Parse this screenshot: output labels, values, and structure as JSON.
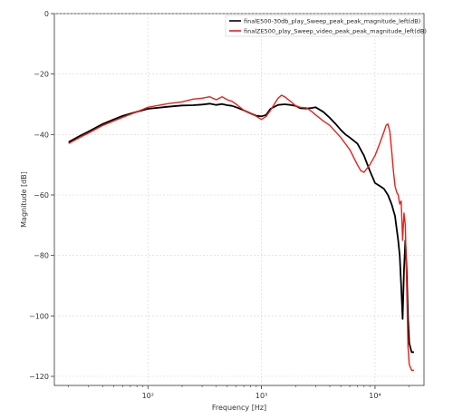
{
  "chart_data": {
    "type": "line",
    "title": "",
    "xlabel": "Frequency [Hz]",
    "ylabel": "Magnitude [dB]",
    "xscale": "log",
    "xlim": [
      15,
      27000
    ],
    "ylim": [
      -123,
      0
    ],
    "x_ticks": [
      {
        "value": 100,
        "label": "10²"
      },
      {
        "value": 1000,
        "label": "10³"
      },
      {
        "value": 10000,
        "label": "10⁴"
      }
    ],
    "y_ticks": [
      {
        "value": 0,
        "label": "0"
      },
      {
        "value": -20,
        "label": "−20"
      },
      {
        "value": -40,
        "label": "−40"
      },
      {
        "value": -60,
        "label": "−60"
      },
      {
        "value": -80,
        "label": "−80"
      },
      {
        "value": -100,
        "label": "−100"
      },
      {
        "value": -120,
        "label": "−120"
      }
    ],
    "grid": true,
    "legend_position": "top-right",
    "series": [
      {
        "name": "finalE500-30db_play_Sweep_peak_peak_magnitude_left(dB)",
        "color": "#000000",
        "x": [
          20,
          25,
          30,
          40,
          50,
          60,
          80,
          100,
          150,
          200,
          250,
          300,
          350,
          400,
          450,
          500,
          550,
          600,
          700,
          800,
          900,
          1000,
          1100,
          1200,
          1400,
          1600,
          1800,
          2000,
          2200,
          2500,
          2800,
          3000,
          3500,
          4000,
          4500,
          5000,
          5500,
          6000,
          7000,
          8000,
          9000,
          10000,
          11000,
          12000,
          13000,
          14000,
          15000,
          16000,
          16500,
          17000,
          17500,
          18000,
          18500,
          19000,
          19500,
          20000,
          21000,
          22000
        ],
        "y": [
          -42.5,
          -40.5,
          -39,
          -36.5,
          -35,
          -33.8,
          -32.5,
          -31.5,
          -30.8,
          -30.4,
          -30.3,
          -30.1,
          -29.8,
          -30.2,
          -29.9,
          -30.3,
          -30.5,
          -31,
          -32,
          -33,
          -33.8,
          -34,
          -33.5,
          -31.5,
          -30.2,
          -30,
          -30.2,
          -30.5,
          -31.3,
          -31.4,
          -31.2,
          -31,
          -32.5,
          -34.5,
          -36.5,
          -38.5,
          -40,
          -41,
          -43,
          -47,
          -52,
          -56,
          -57,
          -58,
          -60,
          -63,
          -67,
          -75,
          -80,
          -90,
          -101,
          -85,
          -75,
          -85,
          -100,
          -109,
          -112,
          -112
        ]
      },
      {
        "name": "finalZE500_play_Sweep_video_peak_peak_magnitude_left(dB)",
        "color": "#e8201a",
        "x": [
          20,
          25,
          30,
          40,
          50,
          60,
          80,
          100,
          150,
          200,
          250,
          300,
          350,
          400,
          450,
          500,
          550,
          600,
          700,
          800,
          900,
          1000,
          1100,
          1200,
          1400,
          1500,
          1600,
          1800,
          2000,
          2200,
          2500,
          2800,
          3000,
          3500,
          4000,
          5000,
          6000,
          7000,
          7500,
          8000,
          9000,
          10000,
          11000,
          12000,
          12500,
          13000,
          13500,
          14000,
          14500,
          15000,
          15500,
          16000,
          16500,
          17000,
          17500,
          18000,
          18500,
          19000,
          19500,
          20000,
          21000,
          22000
        ],
        "y": [
          -43,
          -41,
          -39.5,
          -37,
          -35.5,
          -34.3,
          -32.5,
          -31,
          -29.8,
          -29.2,
          -28.3,
          -28,
          -27.5,
          -28.5,
          -27.5,
          -28.5,
          -29,
          -30,
          -32,
          -33,
          -34,
          -35,
          -34,
          -32,
          -28,
          -27,
          -27.5,
          -29,
          -30.5,
          -31,
          -31.2,
          -32.5,
          -33.5,
          -35.5,
          -37,
          -41,
          -45,
          -50,
          -52,
          -52.5,
          -50,
          -47,
          -43,
          -39,
          -37,
          -36.5,
          -39,
          -45,
          -52,
          -57,
          -59,
          -60,
          -63,
          -62,
          -75,
          -66,
          -70,
          -90,
          -110,
          -116,
          -118,
          -118
        ]
      }
    ]
  }
}
